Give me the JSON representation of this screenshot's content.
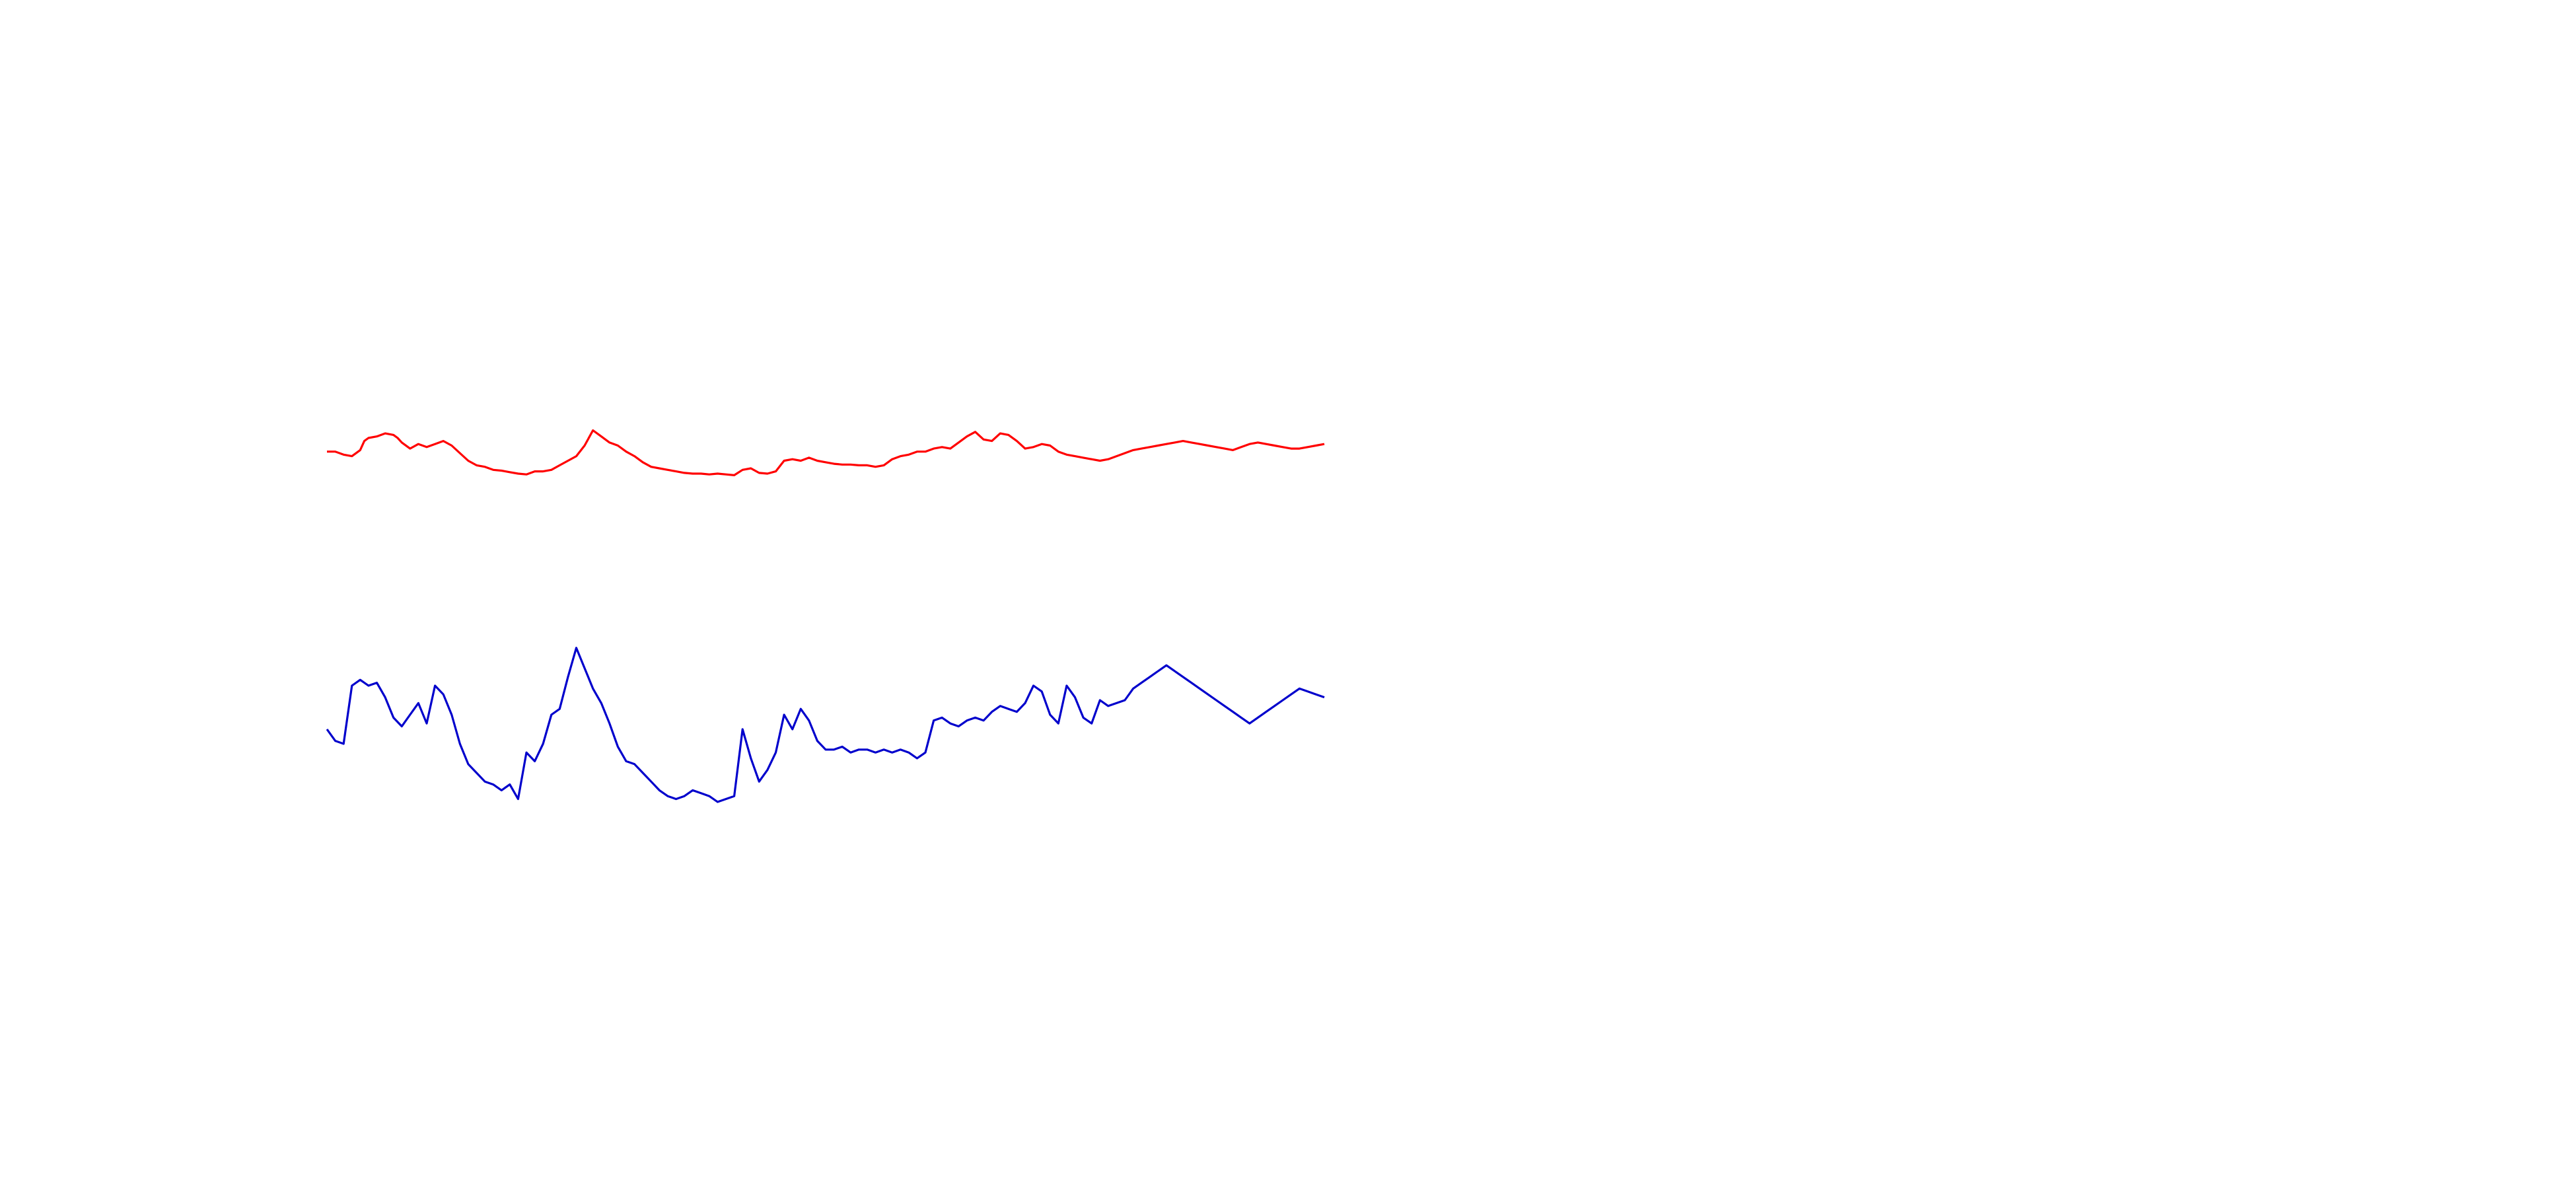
{
  "colors": {
    "background": "#ffffff",
    "series_1": "#ff0000",
    "series_2": "#0000cc"
  },
  "chart_data": {
    "type": "line",
    "title": "",
    "xlabel": "",
    "ylabel": "",
    "axes_visible": false,
    "grid": false,
    "legend": "none",
    "xlim": [
      0,
      120
    ],
    "ylim": [
      -1,
      1
    ],
    "series": [
      {
        "color": "#ff0000",
        "x": [
          0,
          1,
          2,
          3,
          4,
          4.5,
          5,
          6,
          7,
          8,
          8.5,
          9,
          10,
          11,
          12,
          13,
          14,
          15,
          16,
          17,
          18,
          19,
          20,
          21,
          22,
          23,
          24,
          25,
          26,
          27,
          28,
          29,
          30,
          31,
          32,
          33,
          34,
          35,
          36,
          37,
          38,
          39,
          40,
          41,
          42,
          43,
          44,
          45,
          46,
          47,
          48,
          49,
          50,
          51,
          52,
          53,
          54,
          55,
          56,
          57,
          58,
          59,
          60,
          61,
          62,
          63,
          64,
          65,
          66,
          67,
          68,
          69,
          70,
          71,
          72,
          73,
          74,
          75,
          76,
          77,
          78,
          79,
          80,
          81,
          82,
          83,
          84,
          85,
          86,
          87,
          88,
          89,
          90,
          91,
          92,
          93,
          94,
          95,
          96,
          97,
          98,
          99,
          100,
          101,
          102,
          103,
          104,
          105,
          106,
          107,
          108,
          109,
          110,
          111,
          112,
          113,
          114,
          115,
          116,
          117,
          118,
          119,
          120
        ],
        "y": [
          0.62,
          0.62,
          0.58,
          0.56,
          0.64,
          0.76,
          0.8,
          0.82,
          0.86,
          0.84,
          0.8,
          0.74,
          0.66,
          0.72,
          0.68,
          0.72,
          0.76,
          0.7,
          0.6,
          0.5,
          0.44,
          0.42,
          0.38,
          0.37,
          0.35,
          0.33,
          0.32,
          0.36,
          0.36,
          0.38,
          0.44,
          0.5,
          0.56,
          0.7,
          0.9,
          0.82,
          0.74,
          0.7,
          0.62,
          0.56,
          0.48,
          0.42,
          0.4,
          0.38,
          0.36,
          0.34,
          0.33,
          0.33,
          0.32,
          0.33,
          0.32,
          0.31,
          0.38,
          0.4,
          0.34,
          0.33,
          0.36,
          0.5,
          0.52,
          0.5,
          0.54,
          0.5,
          0.48,
          0.46,
          0.45,
          0.45,
          0.44,
          0.44,
          0.42,
          0.44,
          0.52,
          0.56,
          0.58,
          0.62,
          0.62,
          0.66,
          0.68,
          0.66,
          0.74,
          0.82,
          0.88,
          0.78,
          0.76,
          0.86,
          0.84,
          0.76,
          0.66,
          0.68,
          0.72,
          0.7,
          0.62,
          0.58,
          0.56,
          0.54,
          0.52,
          0.5,
          0.52,
          0.56,
          0.6,
          0.64,
          0.66,
          0.68,
          0.7,
          0.72,
          0.74,
          0.76,
          0.74,
          0.72,
          0.7,
          0.68,
          0.66,
          0.64,
          0.68,
          0.72,
          0.74,
          0.72,
          0.7,
          0.68,
          0.66,
          0.66,
          0.68,
          0.7,
          0.72
        ]
      },
      {
        "color": "#0000cc",
        "x": [
          0,
          1,
          2,
          3,
          4,
          5,
          6,
          7,
          8,
          9,
          10,
          11,
          12,
          13,
          14,
          15,
          16,
          17,
          18,
          19,
          20,
          21,
          22,
          23,
          24,
          25,
          26,
          27,
          28,
          29,
          30,
          31,
          32,
          33,
          34,
          35,
          36,
          37,
          38,
          39,
          40,
          41,
          42,
          43,
          44,
          45,
          46,
          47,
          48,
          49,
          50,
          51,
          52,
          53,
          54,
          55,
          56,
          57,
          58,
          59,
          60,
          61,
          62,
          63,
          64,
          65,
          66,
          67,
          68,
          69,
          70,
          71,
          72,
          73,
          74,
          75,
          76,
          77,
          78,
          79,
          80,
          81,
          82,
          83,
          84,
          85,
          86,
          87,
          88,
          89,
          90,
          91,
          92,
          93,
          94,
          95,
          96,
          97,
          98,
          99,
          100,
          101,
          102,
          103,
          104,
          105,
          106,
          107,
          108,
          109,
          110,
          111,
          112,
          113,
          114,
          115,
          116,
          117,
          118,
          119,
          120
        ],
        "y": [
          -0.2,
          -0.28,
          -0.3,
          0.1,
          0.14,
          0.1,
          0.12,
          0.02,
          -0.12,
          -0.18,
          -0.1,
          -0.02,
          -0.16,
          0.1,
          0.04,
          -0.1,
          -0.3,
          -0.44,
          -0.5,
          -0.56,
          -0.58,
          -0.62,
          -0.58,
          -0.68,
          -0.36,
          -0.42,
          -0.3,
          -0.1,
          -0.06,
          0.16,
          0.36,
          0.22,
          0.08,
          -0.02,
          -0.16,
          -0.32,
          -0.42,
          -0.44,
          -0.5,
          -0.56,
          -0.62,
          -0.66,
          -0.68,
          -0.66,
          -0.62,
          -0.64,
          -0.66,
          -0.7,
          -0.68,
          -0.66,
          -0.2,
          -0.4,
          -0.56,
          -0.48,
          -0.36,
          -0.1,
          -0.2,
          -0.06,
          -0.14,
          -0.28,
          -0.34,
          -0.34,
          -0.32,
          -0.36,
          -0.34,
          -0.34,
          -0.36,
          -0.34,
          -0.36,
          -0.34,
          -0.36,
          -0.4,
          -0.36,
          -0.14,
          -0.12,
          -0.16,
          -0.18,
          -0.14,
          -0.12,
          -0.14,
          -0.08,
          -0.04,
          -0.06,
          -0.08,
          -0.02,
          0.1,
          0.06,
          -0.1,
          -0.16,
          0.1,
          0.02,
          -0.12,
          -0.16,
          0.0,
          -0.04,
          -0.02,
          0.0,
          0.08,
          0.12,
          0.16,
          0.2,
          0.24,
          0.2,
          0.16,
          0.12,
          0.08,
          0.04,
          0.0,
          -0.04,
          -0.08,
          -0.12,
          -0.16,
          -0.12,
          -0.08,
          -0.04,
          0.0,
          0.04,
          0.08,
          0.06,
          0.04,
          0.02
        ]
      }
    ]
  }
}
